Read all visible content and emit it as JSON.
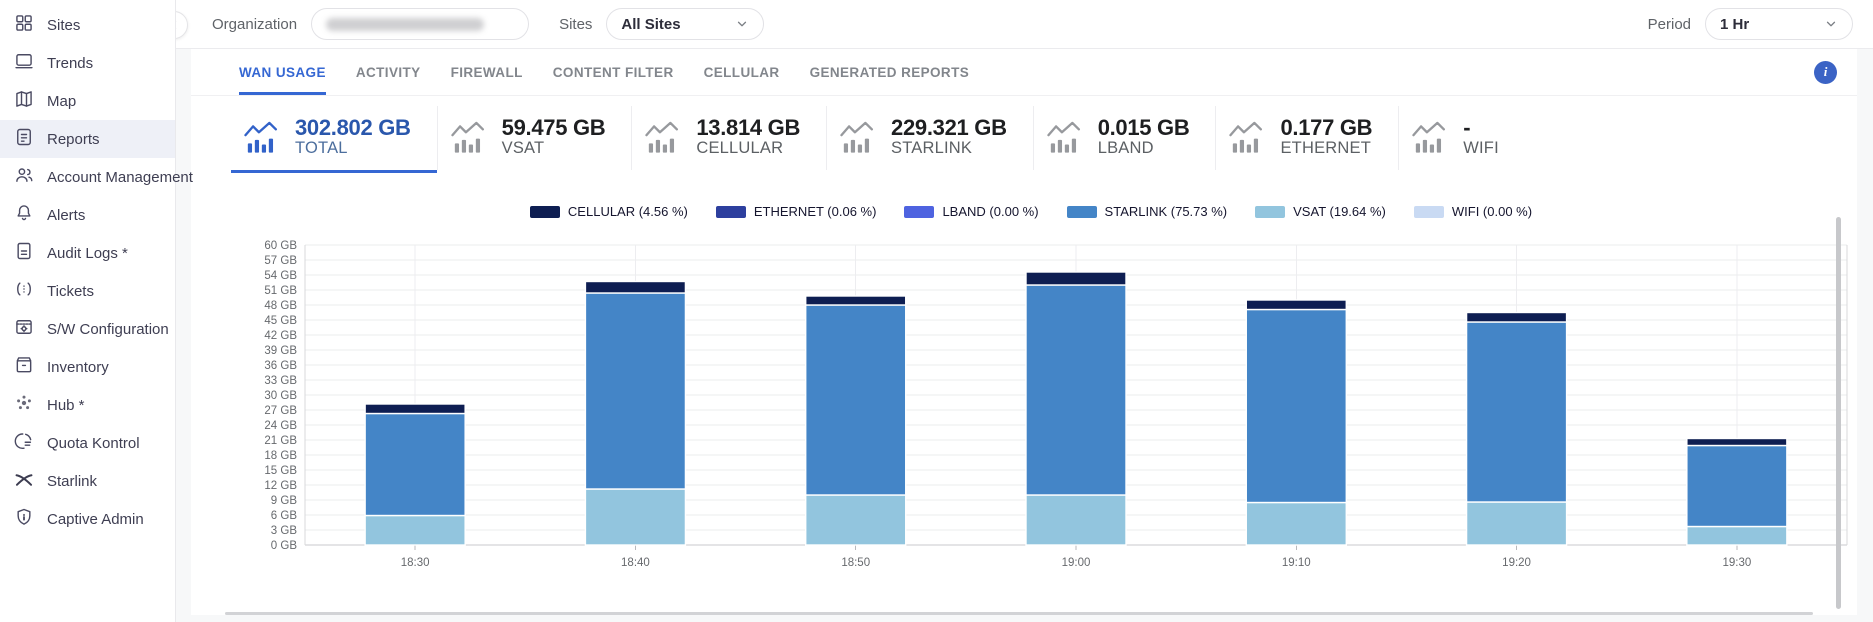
{
  "sidebar": {
    "items": [
      {
        "label": "Sites"
      },
      {
        "label": "Trends"
      },
      {
        "label": "Map"
      },
      {
        "label": "Reports",
        "active": true
      },
      {
        "label": "Account Management"
      },
      {
        "label": "Alerts"
      },
      {
        "label": "Audit Logs *"
      },
      {
        "label": "Tickets"
      },
      {
        "label": "S/W Configuration"
      },
      {
        "label": "Inventory"
      },
      {
        "label": "Hub *"
      },
      {
        "label": "Quota Kontrol"
      },
      {
        "label": "Starlink"
      },
      {
        "label": "Captive Admin"
      }
    ]
  },
  "topbar": {
    "organization_label": "Organization",
    "sites_label": "Sites",
    "sites_value": "All Sites",
    "period_label": "Period",
    "period_value": "1 Hr"
  },
  "tabs": [
    {
      "label": "WAN USAGE",
      "active": true
    },
    {
      "label": "ACTIVITY"
    },
    {
      "label": "FIREWALL"
    },
    {
      "label": "CONTENT FILTER"
    },
    {
      "label": "CELLULAR"
    },
    {
      "label": "GENERATED REPORTS"
    }
  ],
  "info_icon_glyph": "i",
  "stat_cards": [
    {
      "value": "302.802 GB",
      "label": "TOTAL",
      "active": true
    },
    {
      "value": "59.475 GB",
      "label": "VSAT"
    },
    {
      "value": "13.814 GB",
      "label": "CELLULAR"
    },
    {
      "value": "229.321 GB",
      "label": "STARLINK"
    },
    {
      "value": "0.015 GB",
      "label": "LBAND"
    },
    {
      "value": "0.177 GB",
      "label": "ETHERNET"
    },
    {
      "value": "-",
      "label": "WIFI"
    }
  ],
  "chart_data": {
    "type": "bar",
    "stacked": true,
    "title": "",
    "xlabel": "",
    "ylabel": "",
    "ylabel_suffix": " GB",
    "ymax": 60,
    "ystep": 3,
    "grid": true,
    "legend_position": "top",
    "categories": [
      "18:30",
      "18:40",
      "18:50",
      "19:00",
      "19:10",
      "19:20",
      "19:30"
    ],
    "series": [
      {
        "name": "VSAT",
        "color": "#92c5de",
        "values": [
          5.9,
          11.2,
          10.0,
          10.0,
          8.5,
          8.6,
          3.7
        ]
      },
      {
        "name": "STARLINK",
        "color": "#4485c7",
        "values": [
          20.4,
          39.2,
          38.0,
          42.0,
          38.6,
          36.0,
          16.2
        ]
      },
      {
        "name": "CELLULAR",
        "color": "#0e1e52",
        "values": [
          1.9,
          2.3,
          1.8,
          2.6,
          1.9,
          1.9,
          1.4
        ]
      },
      {
        "name": "ETHERNET",
        "color": "#2d3f9e",
        "values": [
          0.03,
          0.03,
          0.02,
          0.03,
          0.02,
          0.02,
          0.02
        ]
      },
      {
        "name": "LBAND",
        "color": "#4e63e0",
        "values": [
          0.002,
          0.002,
          0.002,
          0.003,
          0.002,
          0.002,
          0.002
        ]
      },
      {
        "name": "WIFI",
        "color": "#c9daf3",
        "values": [
          0,
          0,
          0,
          0,
          0,
          0,
          0
        ]
      }
    ],
    "legend": [
      {
        "label": "CELLULAR (4.56 %)",
        "color": "#0e1e52"
      },
      {
        "label": "ETHERNET (0.06 %)",
        "color": "#2d3f9e"
      },
      {
        "label": "LBAND (0.00 %)",
        "color": "#4e63e0"
      },
      {
        "label": "STARLINK (75.73 %)",
        "color": "#4485c7"
      },
      {
        "label": "VSAT (19.64 %)",
        "color": "#92c5de"
      },
      {
        "label": "WIFI (0.00 %)",
        "color": "#c9daf3"
      }
    ]
  }
}
